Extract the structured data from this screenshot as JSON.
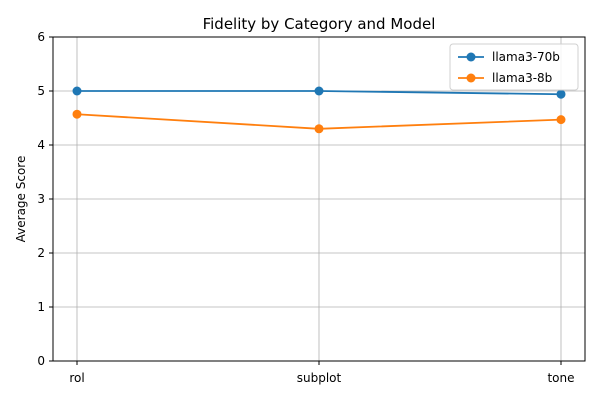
{
  "chart_data": {
    "type": "line",
    "title": "Fidelity by Category and Model",
    "xlabel": "",
    "ylabel": "Average Score",
    "categories": [
      "rol",
      "subplot",
      "tone"
    ],
    "ylim": [
      0,
      6
    ],
    "yticks": [
      0,
      1,
      2,
      3,
      4,
      5,
      6
    ],
    "grid": true,
    "legend_position": "top-right",
    "series": [
      {
        "name": "llama3-70b",
        "color": "#1f77b4",
        "values": [
          5.0,
          5.0,
          4.94
        ]
      },
      {
        "name": "llama3-8b",
        "color": "#ff7f0e",
        "values": [
          4.57,
          4.3,
          4.47
        ]
      }
    ]
  }
}
